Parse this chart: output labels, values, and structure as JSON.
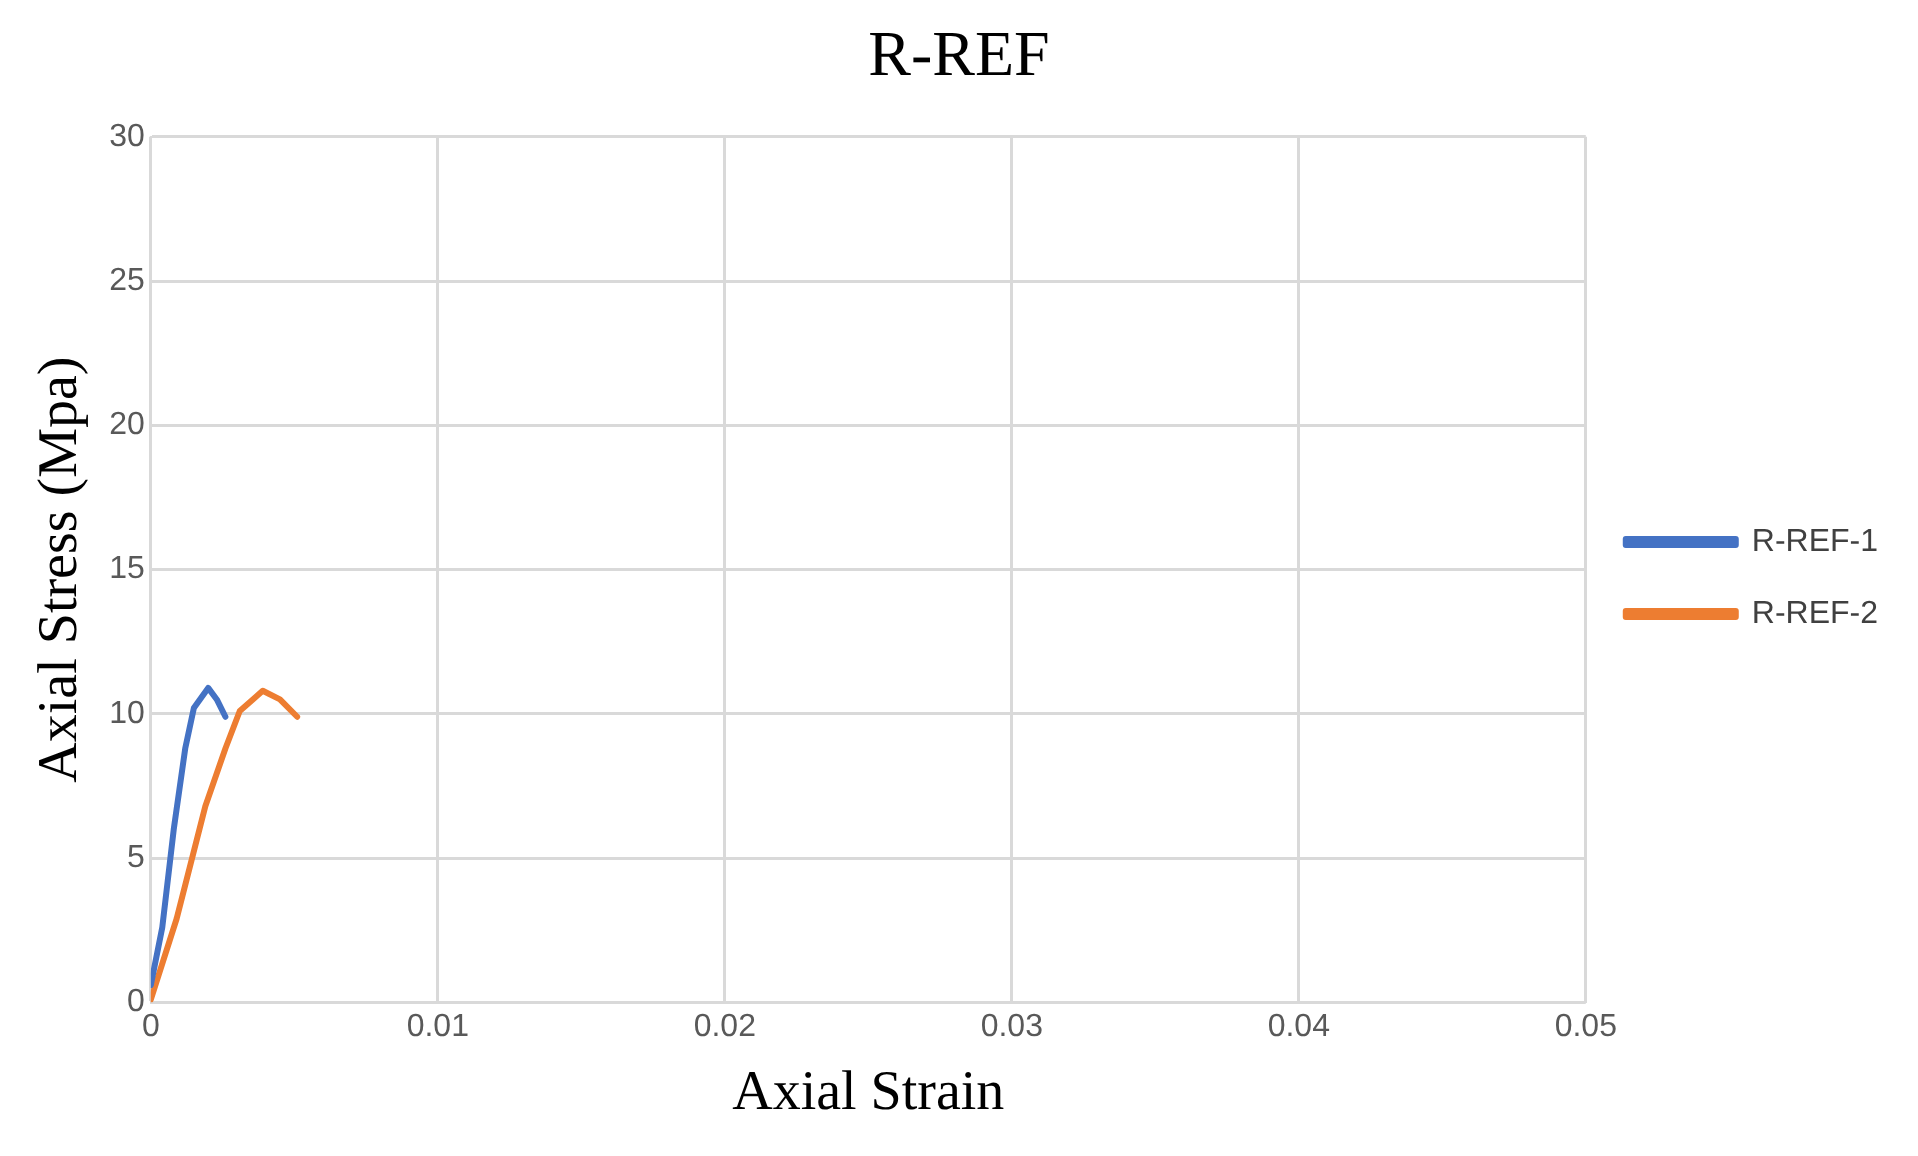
{
  "chart_data": {
    "type": "line",
    "title": "R-REF",
    "xlabel": "Axial Strain",
    "ylabel": "Axial Stress (Mpa)",
    "xlim": [
      0,
      0.05
    ],
    "xticks": [
      0,
      0.01,
      0.02,
      0.03,
      0.04,
      0.05
    ],
    "ylim": [
      0,
      30
    ],
    "yticks": [
      0,
      5,
      10,
      15,
      20,
      25,
      30
    ],
    "grid": true,
    "legend": "right",
    "marker": "none",
    "series": [
      {
        "name": "R-REF-1",
        "color": "#4472c4",
        "x": [
          0,
          0.0004,
          0.0008,
          0.0012,
          0.0015,
          0.002,
          0.0023,
          0.0026
        ],
        "values": [
          0.6,
          2.6,
          6.0,
          8.8,
          10.2,
          10.9,
          10.5,
          9.9
        ]
      },
      {
        "name": "R-REF-2",
        "color": "#ed7d31",
        "x": [
          0,
          0.0009,
          0.0019,
          0.0026,
          0.0031,
          0.0039,
          0.0045,
          0.0051
        ],
        "values": [
          0.1,
          2.9,
          6.8,
          8.8,
          10.1,
          10.8,
          10.5,
          9.9
        ]
      }
    ]
  }
}
